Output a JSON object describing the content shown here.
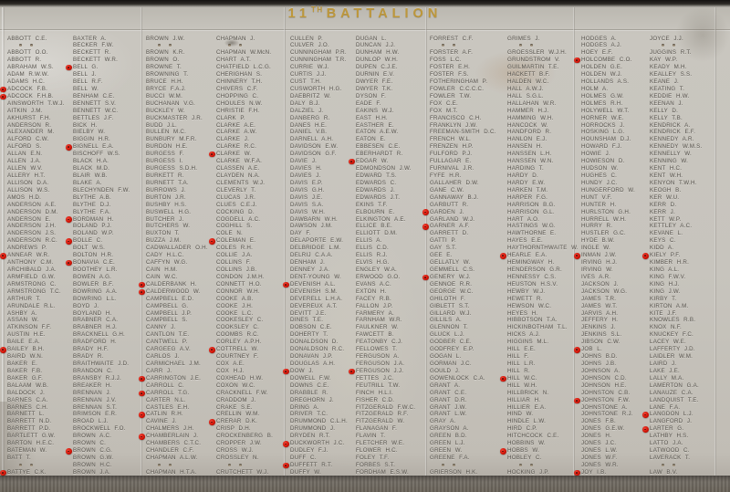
{
  "title": {
    "number": "11",
    "ordinal": "TH",
    "word": "BATTALION"
  },
  "colors": {
    "stone": "#c7c4bd",
    "engraved_text": "#524e47",
    "title_gold": "#bd973b",
    "poppy_red": "#d11508",
    "base_granite": "#696359",
    "top_shadow": "#141210"
  },
  "columns": [
    [
      "ABBOTT C.E.",
      "",
      "ABBOTT O.O.",
      "ABBOTT R.",
      "ABRAHAM W.S.",
      "ADAM R.W.W.",
      "ADAMS H.C.",
      "ADCOCK F.B.",
      "ADCOCK F.H.B.",
      "AINSWORTH T.W.J.",
      "AITKIN J.M.",
      "AKHURST F.H.",
      "ANDERSON R.",
      "ALEXANDER M.",
      "ALFORD C.W.",
      "ALFORD S.",
      "ALLAN E.N.",
      "ALLEN J.A.",
      "ALLEN W.V.",
      "ALLERY H.T.",
      "ALLISON D.A.",
      "ALLISON W.S.",
      "AMOS H.D.",
      "ANDERSON A.E.",
      "ANDERSON D.M.",
      "ANDERSON E.",
      "ANDERSON J.H.",
      "ANDERSON J.S.",
      "ANDERSON R.C.",
      "ANDREWS P.",
      "ANNEAR W.R.",
      "ANTHONY C.M.",
      "ARCHIBALD J.A.",
      "ARMFIELD G.W.",
      "ARMSTRONG C.",
      "ARMSTRONG T.C.",
      "ARTHUR T.",
      "ARUNDALE R.L.",
      "ASHBY A.",
      "ASSAN W.",
      "ATKINSON F.F.",
      "AUSTIN H.E.",
      "BAILE E.A.",
      "BAILEY B.H.",
      "BAIRD W.N.",
      "BAKER E.",
      "BAKER F.B.",
      "BAKER G.F.",
      "BALAAM W.B.",
      "BALDOCK J.",
      "BARNES C.A.",
      "BARNES C.H.",
      "BARNETT L.",
      "BARRETT N.D.",
      "BARRETT P.D.",
      "BARTLETT G.W.",
      "BARTON H.E.C.",
      "BATEMAN W.",
      "BATT T.",
      "",
      "BATTYE C.K."
    ],
    [
      "BAXTER A.",
      "BECKER F.W.",
      "BECKETT R.",
      "BECKETT W.R.",
      "BELL G.",
      "BELL J.",
      "BELL R.F.",
      "BELL W.",
      "BENHAM C.E.",
      "BENNETT S.V.",
      "BENNETT W.C.",
      "BETTLES J.F.",
      "BICK H.",
      "BIELBY W.",
      "BIGGIN H.R.",
      "BIGNELL E.A.",
      "BISCHOFF W.S.",
      "BLACK H.A.",
      "BLACK M.D.",
      "BLAIR W.B.",
      "BLAKE A.",
      "BLECHYNDEN F.W.",
      "BLYTHE A.B.",
      "BLYTHE D.J.",
      "BLYTHE F.A.",
      "BORDMAN H.",
      "BOLAND P.J.",
      "BOLAND W.P.",
      "BOLLE C.",
      "BOLT W.S.",
      "BOLTON H.R.",
      "BONAVIA C.E.",
      "BOOTHEY L.R.",
      "BOWEN A.G.",
      "BOWLER B.F.",
      "BOWRING A.A.",
      "BOWRING L.L.",
      "BOYD J.",
      "BOYLAND H.",
      "BRABNER C.A.",
      "BRABNER H.J.",
      "BRACKNELL G.H.",
      "BRADFORD H.",
      "BRADY H.F.",
      "BRADY R.",
      "BRAITHWAITE J.D.",
      "BRANDON C.",
      "BRANSBY R.J.J.",
      "BREAKER H.",
      "BRENNAN J.",
      "BRENNAN J.V.",
      "BRENNAN S.T.",
      "BRIMSON E.R.",
      "BROAD L.J.",
      "BROCKWELL F.O.",
      "BROWN A.C.",
      "BROWN C.",
      "BROWN C.G.",
      "BROWN G.W.",
      "BROWN H.C.",
      "BROWN J.A."
    ],
    [
      "BROWN J.W.",
      "",
      "BROWN K.R.",
      "BROWN O.",
      "BROWNE T.",
      "BROWNING T.",
      "BRUCE H.H.",
      "BRYCE F.A.J.",
      "BUCCI W.M.",
      "BUCHANAN V.G.",
      "BUCKLEY W.",
      "BUCKMASTER J.R.",
      "BUDD J.L.",
      "BULLEN M.C.",
      "BUNBURY M.F.R.",
      "BURDON H.E.",
      "BURGESS F.",
      "BURGESS I.",
      "BURGESS S.D.H.",
      "BURKETT R.",
      "BURNETT T.A.",
      "BURROWS J.",
      "BURTON J.R.",
      "BUSHBY H.S.",
      "BUSWELL H.G.",
      "BUTCHER J.",
      "BUTCHERS W.",
      "BUXTON T.",
      "BUZZA J.M.",
      "CADWALLADER O.H.",
      "CADY H.L.C.",
      "CAFFYN W.G.",
      "CAIN H.M.",
      "CAIN W.C.",
      "CALDERBANK H.",
      "CALDERWOOD W.",
      "CAMPBELL E.D.",
      "CAMPBELL G.",
      "CAMPBELL J.P.",
      "CAMPBELL S.",
      "CANNY J.",
      "CANTLON T.E.",
      "CANTWELL P.",
      "CARGEEG A.V.",
      "CARLOS J.",
      "CARMICHAEL J.M.",
      "CARR J.",
      "CARRINGTON J.E.",
      "CARROLL C.",
      "CARROLL T.G.",
      "CARTER N.L.",
      "CASTLES E.H.",
      "CATLIN R.H.",
      "CAVINE J.",
      "CHALMERS J.H.",
      "CHAMBERLAIN J.",
      "CHAMBERS C.T.C.",
      "CHANDLER C.F.",
      "CHAPMAN A.L.W.",
      "",
      "CHAPMAN H.T.A."
    ],
    [
      "CHAPMAN J.",
      "",
      "CHAPMAN W.McN.",
      "CHART A.T.",
      "CHATFIELD L.C.G.",
      "CHERIGHAN S.",
      "CHINNERY T.H.",
      "CHIVERS C.F.",
      "CHOPPING C.",
      "CHOULES N.W.",
      "CHRISTIE F.H.",
      "CLARK P.",
      "CLARKE A.E.",
      "CLARKE A.W.",
      "CLARKE J.",
      "CLARKE R.C.",
      "CLARKE W.",
      "CLARKE W.F.A.",
      "CLASSEN A.E.",
      "CLAYDEN N.A.",
      "CLEMENTS W.J.",
      "CLEVERLY T.",
      "CLUCAS J.R.",
      "CLUES C.E.J.",
      "COCKING D.",
      "COGDELL A.C.",
      "COGHILL S.",
      "COLE N.",
      "COLEMAN E.",
      "COLES R.H.",
      "COLLIE J.A.",
      "COLLINS F.",
      "COLLINS J.B.",
      "CONDON J.M.H.",
      "CONNETT H.O.",
      "CONNOR W.H.",
      "COOKE A.B.",
      "COOKE J.H.",
      "COOKE L.C.",
      "COOKESLEY C.",
      "COOKSLEY C.",
      "COOMBS R.C.",
      "CORLEY A.P.H.",
      "COTTRELL W.",
      "COURTNEY F.",
      "COX A.E.",
      "COX H.J.",
      "COXHEAD H.W.",
      "COXON W.C.",
      "CRACKNELL F.W.",
      "CRADDOM J.",
      "CRAKE S.E.",
      "CRELLIN W.M.",
      "CRERAR D.K.",
      "CRISP D.H.",
      "CROCKENBERG B.",
      "CROPPER J.W.",
      "CROSS W.J.",
      "CROSSLEY N.",
      "",
      "CRUTCHETT W.J."
    ],
    [
      "CULLEN P.",
      "CULVER J.O.",
      "CUNNINGHAM P.R.",
      "CUNNINGHAM T.R.",
      "CURRIE W.J.",
      "CURTIS J.J.",
      "CUST T.H.",
      "CUSWORTH H.G.",
      "DAEBRITZ W.",
      "DALY B.J.",
      "DALZIEL J.",
      "DANBERG R.",
      "DANES H.E.",
      "DANIEL V.B.",
      "DARNELL A.H.",
      "DAVIDSON E.W.",
      "DAVIDSON G.F.",
      "DAVIE J.",
      "DAVIES H.",
      "DAVIES J.",
      "DAVIS E.P.",
      "DAVIS G.H.",
      "DAVIS J.E.",
      "DAVIS S.A.",
      "DAVIS W.H.",
      "DAWBARN W.H.",
      "DAWSON J.M.",
      "DAY F.",
      "DELAPORTE E.W.",
      "DELBRIDGE L.M.",
      "DELRIJ C.A.A.",
      "DENHAM J.",
      "DENNEY J.A.",
      "DENT-YOUNG W.",
      "DEVENISH A.L.",
      "DEVENISH S.M.",
      "DEVERELL L.H.A.",
      "DEVEREUX A.T.",
      "DEVITT J.E.",
      "DINES T.E.",
      "DOBSON C.E.",
      "DOHERTY T.",
      "DONALDSON D.",
      "DONALDSON R.C.",
      "DONAVAN J.P.",
      "DOUGLAS A.H.",
      "DOW J.",
      "DOWELL F.W.",
      "DOWNS C.E.",
      "DRABBLE R.",
      "DREGHORN J.",
      "DRING A.",
      "DRIVER T.C.",
      "DRUMMOND C.L.H.",
      "DRUMMOND J.",
      "DRYDEN R.T.",
      "DUCKWORTH J.C.",
      "DUDLEY F.J.",
      "DUFF C.",
      "DUFFETT R.T.",
      "DUFFY W."
    ],
    [
      "DUGAN L.",
      "DUNCAN J.J.",
      "DUNHAM H.W.",
      "DUNLOP W.H.",
      "DUPEN C.J.E.",
      "DURNIN E.V.",
      "DWYER F.E.",
      "DWYER T.K.",
      "DYSON F.",
      "EADE F.",
      "EAKINS W.J.",
      "EAST H.H.",
      "EASTHER E.",
      "EATON A.E.W.",
      "EATON E.",
      "EBBESEN C.E.",
      "EBERHARDT R.",
      "EDGAR W.",
      "EDMONDSON J.W.",
      "EDWARD T.S.",
      "EDWARDS C.",
      "EDWARDS J.",
      "EDWARDS J.T.",
      "EKINS T.F.",
      "ELBOURN E.",
      "ELKINGTON A.E.",
      "ELLICE B.E.",
      "ELLIOTT D.M.",
      "ELLIS A.",
      "ELLIS C.D.",
      "ELLIS R.J.",
      "ELVIS H.G.",
      "ENGLEY W.A.",
      "ERWOOD G.O.",
      "EVANS A.C.",
      "EXTON H.",
      "FACEY R.B.",
      "FALLON J.P.",
      "FARMERY A.",
      "FARNHAM W.R.",
      "FAULKNER W.",
      "FAWCETT B.",
      "FEATONBY C.J.",
      "FELLOWES T.",
      "FERGUSON A.",
      "FERGUSON J.A.",
      "FERGUSON J.J.",
      "FETTES J.C.",
      "FEUTRILL T.W.",
      "FINCH H.L.I.",
      "FISHER C.D.",
      "FITZGERALD F.W.C.",
      "FITZGERALD R.F.",
      "FITZGERALD W.",
      "FLANAGAN F.",
      "FLAVIN T.",
      "FLETCHER W.E.",
      "FLOWER H.C.",
      "FOLEY T.F.",
      "FORBES S.T.",
      "FORDHAM E.S.W."
    ],
    [
      "FORREST C.F.",
      "",
      "FORSTER A.F.",
      "FOSS L.C.",
      "FOSTER E.H.",
      "FOSTER F.S.",
      "FOTHERINGHAM P.",
      "FOWLER C.C.C.C.",
      "FOWLER T.W.",
      "FOX C.E.",
      "FOX M.T.",
      "FRANCISCO C.H.",
      "FRANKLYN J.W.",
      "FREEMAN-SMITH D.C.",
      "FRENCH W.L.",
      "FRENZEN H.P.",
      "FULFORD P.J.",
      "FULLAGAR E.",
      "FURNIVAL J.R.",
      "FYFE H.R.",
      "GALLAHER D.W.",
      "GANE C.W.",
      "GANNAWAY B.J.",
      "GARBUTT R.",
      "GARDEN J.",
      "GARLAND W.J.",
      "GARNER A.F.",
      "GARRETT D.",
      "GATTI P.",
      "GAY S.T.",
      "GEE E.",
      "GELLATLY W.",
      "GEMMELL C.S.",
      "GENERY W.J.",
      "GENNOE R.R.",
      "GEORGE W.C.",
      "GHILOTH F.",
      "GIBLETT S.T.",
      "GILLARD W.J.",
      "GILLILS A.",
      "GLENNON T.",
      "GLUCK L.J.",
      "GODBER C.E.",
      "GODFREY E.P.",
      "GOGAN L.",
      "GORMAN J.C.",
      "GOULD J.",
      "GOWENLOCK C.A.",
      "GRANT A.",
      "GRANT C.E.",
      "GRANT D.R.",
      "GRANT J.W.",
      "GRANT L.W.",
      "GRAY A.",
      "GRAYSON A.",
      "GREEN B.D.",
      "GREEN L.J.",
      "GREEN W.",
      "GREENE F.A.",
      "",
      "GRIERSON H.K."
    ],
    [
      "GRIMES J.",
      "",
      "GROESSLER W.J.H.",
      "GRUNDSTROM V.",
      "GUILMARTIN T.E.",
      "HACKETT B.F.",
      "HALDEN W.C.",
      "HALL A.W.J.",
      "HALL S.G.L.",
      "HALLAHAN W.R.",
      "HAMMER H.J.",
      "HAMMING W.H.",
      "HANCOCK W.",
      "HANDFORD R.",
      "HANLON E.J.",
      "HANSEN H.",
      "HANSSEN L.H.",
      "HANSSEN W.N.",
      "HARDING T.",
      "HARDY D.",
      "HARDY E.W.",
      "HARKEN T.M.",
      "HARPER F.G.",
      "HARRISON B.G.",
      "HARRISON G.L.",
      "HART A.O.",
      "HASTINGS W.G.",
      "HAWTHORNE E.",
      "HAYES E.E.",
      "HAYTHORNTHWAITE W.",
      "HEARLE E.A.",
      "HEMINGWAY H.",
      "HENDERSON G.R.",
      "HENNESSY C.S.",
      "HEUSTON H.S.V.",
      "HEWBY W.J.",
      "HEWETT R.",
      "HEWSON W.C.",
      "HEYES H.",
      "HIBBOTSON T.A.",
      "HICKINBOTHAM T.L.",
      "HICKS A.J.",
      "HIGGINS M.L.",
      "HILL E.E.",
      "HILL F.",
      "HILL L.R.",
      "HILL R.",
      "HILL W.C.",
      "HILL W.H.",
      "HILLBRICK N.",
      "HILLIAR H.",
      "HILLIER E.A.",
      "HIND W.",
      "HINDLE L.W.",
      "HIRD C.P.",
      "HITCHCOCK C.E.",
      "HOBBINS W.",
      "HOBBS W.",
      "HOBLEY C.",
      "",
      "HOCKING J.P."
    ],
    [
      "HODGES A.",
      "HODGES A.J.",
      "HOEY E.F.",
      "HOLCOMBE C.O.",
      "HOLDEN G.E.",
      "HOLDEN W.J.",
      "HOLLANDS A.S.",
      "HOLM A.",
      "HOLMES G.W.",
      "HOLMES R.H.",
      "HOLYWELL W.T.",
      "HORNER W.E.",
      "HORROCKS J.",
      "HOSKING L.G.",
      "HOUNSHAM D.J.",
      "HOWARD F.J.",
      "HOWIE J.",
      "HOWIESON D.",
      "HUDSON W.",
      "HUGHES C.",
      "HUNDY J.C.",
      "HUNGERFORD W.",
      "HUNT V.F.",
      "HUNTER H.",
      "HURLSTON G.H.",
      "HURRELL W.H.",
      "HURRY R.",
      "HUSTLER G.C.",
      "HYDE B.W.",
      "INGLE W.",
      "INMAN J.W.",
      "IRVING H.J.",
      "IRVING W.",
      "IVES A.R.",
      "JACKSON J.",
      "JACKSON W.G.",
      "JAMES T.R.",
      "JAMES W.T.",
      "JARVIS A.H.",
      "JEFFERY H.",
      "JENKINS J.",
      "JENKINS S.L.",
      "JIBSON C.W.",
      "JOB L.",
      "JOHNS B.D.",
      "JOHNS J.B.",
      "JOHNSON A.",
      "JOHNSON C.D.",
      "JOHNSON H.E.",
      "JOHNSTON C.B.",
      "JOHNSTON F.W.",
      "JOHNSTONE A.",
      "JOHNSTONE R.J.",
      "JONES F.B.",
      "JONES G.E.W.",
      "JONES H.",
      "JONES J.C.",
      "JONES L.W.",
      "JONES W.F.",
      "JONES W.R.",
      "JOY I.B."
    ],
    [
      "JOYCE J.J.",
      "",
      "JUGGINS R.T.",
      "KAY W.P.",
      "KEADY M.H.",
      "KEALLEY S.S.",
      "KEANE J.",
      "KEATING T.",
      "KEDDIE H.W.",
      "KEENAN J.",
      "KELLY D.",
      "KELLY T.B.",
      "KENDRICK A.",
      "KENDRICK E.F.",
      "KENNEDY A.R.",
      "KENNEDY W.M.S.",
      "KENNELLY W.",
      "KENNING W.",
      "KENT H.C.",
      "KENT W.H.",
      "KENYON T.W.H.",
      "KEOGH B.",
      "KER W.U.",
      "KERR D.",
      "KERR J.",
      "KETT W.P.",
      "KETTLEY A.C.",
      "KEVANE L.",
      "KEYS C.",
      "KIDD A.",
      "KIELY P.F.",
      "KIMBER H.R.",
      "KING A.L.",
      "KING F.W.V.",
      "KING H.J.",
      "KING J.W.",
      "KIRBY T.",
      "KIRTON A.M.",
      "KITE J.F.",
      "KNOWLES R.B.",
      "KNOX N.F.",
      "KNUCKEY F.C.",
      "LACEY W.E.",
      "LAFFERTY J.D.",
      "LAIDLER W.M.",
      "LAIRD J.",
      "LAKE J.E.",
      "LALLY M.A.",
      "LAMERTON G.A.",
      "LANAUZE C.A.",
      "LANDQUIST T.E.",
      "LANE F.A.",
      "LANGDON L.J.",
      "LANGFORD J.",
      "LARTER G.",
      "LATHBY H.S.",
      "LATTO J.A.",
      "LATWOOD C.",
      "LAVERACK T.",
      "",
      "LAW B.V."
    ]
  ],
  "poppies": [
    [
      0,
      7
    ],
    [
      0,
      8
    ],
    [
      0,
      30
    ],
    [
      0,
      43
    ],
    [
      0,
      60
    ],
    [
      1,
      4
    ],
    [
      1,
      15
    ],
    [
      1,
      25
    ],
    [
      1,
      28
    ],
    [
      1,
      31
    ],
    [
      1,
      57
    ],
    [
      2,
      34
    ],
    [
      2,
      35
    ],
    [
      2,
      47
    ],
    [
      2,
      49
    ],
    [
      2,
      52
    ],
    [
      2,
      55
    ],
    [
      3,
      16
    ],
    [
      3,
      28
    ],
    [
      3,
      43
    ],
    [
      3,
      53
    ],
    [
      4,
      34
    ],
    [
      4,
      46
    ],
    [
      4,
      56
    ],
    [
      4,
      59
    ],
    [
      5,
      17
    ],
    [
      5,
      46
    ],
    [
      6,
      24
    ],
    [
      6,
      26
    ],
    [
      6,
      33
    ],
    [
      7,
      30
    ],
    [
      7,
      47
    ],
    [
      7,
      57
    ],
    [
      8,
      3
    ],
    [
      8,
      30
    ],
    [
      8,
      43
    ],
    [
      8,
      50
    ],
    [
      8,
      60
    ],
    [
      9,
      30
    ],
    [
      9,
      52
    ],
    [
      9,
      54
    ]
  ]
}
